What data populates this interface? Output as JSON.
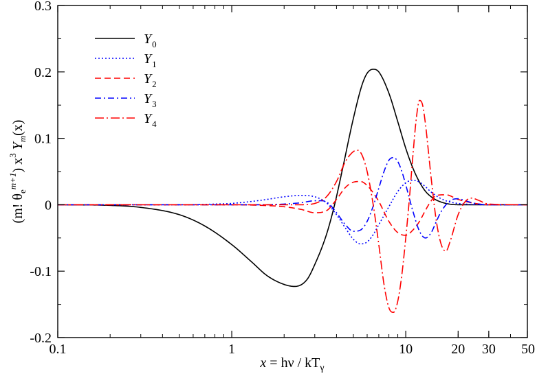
{
  "chart_data": {
    "type": "line",
    "xscale": "log",
    "xlim": [
      0.1,
      50
    ],
    "ylim": [
      -0.2,
      0.3
    ],
    "grid": false,
    "legend_position": "top-left",
    "x_ticks": [
      {
        "value": 0.1,
        "label": "0.1"
      },
      {
        "value": 1,
        "label": "1"
      },
      {
        "value": 10,
        "label": "10"
      },
      {
        "value": 20,
        "label": "20"
      },
      {
        "value": 30,
        "label": "30"
      },
      {
        "value": 50,
        "label": "50"
      }
    ],
    "y_ticks": [
      {
        "value": -0.2,
        "label": "-0.2"
      },
      {
        "value": -0.1,
        "label": "-0.1"
      },
      {
        "value": 0,
        "label": "0"
      },
      {
        "value": 0.1,
        "label": "0.1"
      },
      {
        "value": 0.2,
        "label": "0.2"
      },
      {
        "value": 0.3,
        "label": "0.3"
      }
    ],
    "xlabel": {
      "var": "x",
      "eq": " = h",
      "nu": "ν",
      "slash": " / kT",
      "sub": "γ"
    },
    "ylabel": {
      "a": "(m! θ",
      "e": "e",
      "sup": "m+1",
      "b": ")  x",
      "three": "3",
      "c": "  Y",
      "m": "m",
      "d": "(x)"
    },
    "series": [
      {
        "name": "Y",
        "sub": "0",
        "color": "#000000",
        "dash": "solid",
        "x": [
          0.1,
          0.2,
          0.3,
          0.5,
          0.7,
          1.0,
          1.3,
          1.6,
          2.0,
          2.3,
          2.7,
          3.0,
          3.5,
          3.9,
          4.3,
          5.0,
          5.6,
          6.0,
          6.5,
          7.0,
          8.0,
          9.0,
          10.0,
          11.0,
          12.0,
          13.0,
          14.0,
          15.0,
          17.0,
          20.0,
          25.0,
          30.0,
          40.0,
          50.0
        ],
        "y": [
          0.0,
          -0.001,
          -0.004,
          -0.015,
          -0.032,
          -0.06,
          -0.086,
          -0.107,
          -0.12,
          -0.123,
          -0.113,
          -0.09,
          -0.045,
          0.0,
          0.05,
          0.13,
          0.18,
          0.198,
          0.204,
          0.2,
          0.168,
          0.125,
          0.085,
          0.055,
          0.034,
          0.02,
          0.012,
          0.007,
          0.002,
          0.0,
          0.0,
          0.0,
          0.0,
          0.0
        ]
      },
      {
        "name": "Y",
        "sub": "1",
        "color": "#0000ff",
        "dash": "dot",
        "x": [
          0.1,
          0.3,
          0.5,
          0.8,
          1.0,
          1.5,
          2.0,
          2.5,
          3.0,
          3.5,
          4.0,
          4.5,
          5.0,
          5.5,
          6.0,
          6.5,
          7.0,
          8.0,
          9.0,
          10.0,
          11.0,
          12.0,
          13.0,
          14.0,
          16.0,
          18.0,
          22.0,
          30.0,
          50.0
        ],
        "y": [
          0.0,
          0.0,
          0.0,
          0.001,
          0.002,
          0.007,
          0.012,
          0.014,
          0.012,
          0.003,
          -0.015,
          -0.035,
          -0.052,
          -0.059,
          -0.056,
          -0.045,
          -0.03,
          -0.003,
          0.02,
          0.033,
          0.037,
          0.034,
          0.027,
          0.019,
          0.009,
          0.004,
          0.001,
          0.0,
          0.0
        ]
      },
      {
        "name": "Y",
        "sub": "2",
        "color": "#ff0000",
        "dash": "dash",
        "x": [
          0.1,
          0.5,
          1.0,
          1.5,
          2.0,
          2.5,
          3.0,
          3.5,
          4.0,
          4.5,
          5.0,
          5.5,
          6.0,
          6.5,
          7.0,
          8.0,
          9.0,
          10.0,
          11.0,
          12.0,
          13.0,
          14.0,
          15.0,
          17.0,
          20.0,
          25.0,
          30.0,
          50.0
        ],
        "y": [
          0.0,
          0.0,
          0.0,
          -0.001,
          -0.003,
          -0.007,
          -0.012,
          -0.009,
          0.008,
          0.026,
          0.034,
          0.035,
          0.029,
          0.018,
          0.005,
          -0.025,
          -0.042,
          -0.046,
          -0.038,
          -0.025,
          -0.008,
          0.006,
          0.014,
          0.015,
          0.008,
          0.002,
          0.0,
          0.0
        ]
      },
      {
        "name": "Y",
        "sub": "3",
        "color": "#0000ff",
        "dash": "dashdot",
        "x": [
          0.1,
          0.5,
          1.0,
          1.5,
          2.0,
          2.5,
          3.0,
          3.3,
          3.6,
          4.0,
          4.5,
          5.0,
          5.5,
          6.0,
          6.5,
          7.0,
          7.5,
          8.0,
          8.5,
          9.0,
          9.5,
          10.0,
          11.0,
          12.0,
          13.0,
          14.0,
          15.0,
          16.0,
          18.0,
          20.0,
          22.0,
          25.0,
          30.0,
          50.0
        ],
        "y": [
          0.0,
          0.0,
          0.0,
          0.0,
          0.001,
          0.003,
          0.006,
          0.006,
          0.002,
          -0.012,
          -0.03,
          -0.04,
          -0.038,
          -0.025,
          -0.002,
          0.025,
          0.05,
          0.067,
          0.071,
          0.065,
          0.05,
          0.03,
          -0.01,
          -0.04,
          -0.05,
          -0.042,
          -0.025,
          -0.01,
          0.006,
          0.009,
          0.006,
          0.002,
          0.0,
          0.0
        ]
      },
      {
        "name": "Y",
        "sub": "4",
        "color": "#ff0000",
        "dash": "dashdotlong",
        "x": [
          0.1,
          0.5,
          1.0,
          1.5,
          2.0,
          2.5,
          3.0,
          3.5,
          4.0,
          4.5,
          5.0,
          5.3,
          5.6,
          6.0,
          6.5,
          7.0,
          7.5,
          8.0,
          8.5,
          9.0,
          9.5,
          10.0,
          10.5,
          11.0,
          11.5,
          12.0,
          12.5,
          13.0,
          13.5,
          14.0,
          15.0,
          16.0,
          17.0,
          18.0,
          20.0,
          22.0,
          24.0,
          26.0,
          30.0,
          50.0
        ],
        "y": [
          0.0,
          0.0,
          0.0,
          0.0,
          0.0,
          0.0,
          0.002,
          0.012,
          0.035,
          0.065,
          0.08,
          0.082,
          0.075,
          0.05,
          0.0,
          -0.06,
          -0.12,
          -0.155,
          -0.162,
          -0.145,
          -0.105,
          -0.05,
          0.01,
          0.075,
          0.13,
          0.157,
          0.15,
          0.12,
          0.08,
          0.04,
          -0.025,
          -0.06,
          -0.07,
          -0.055,
          -0.015,
          0.005,
          0.01,
          0.007,
          0.001,
          0.0
        ]
      }
    ]
  }
}
